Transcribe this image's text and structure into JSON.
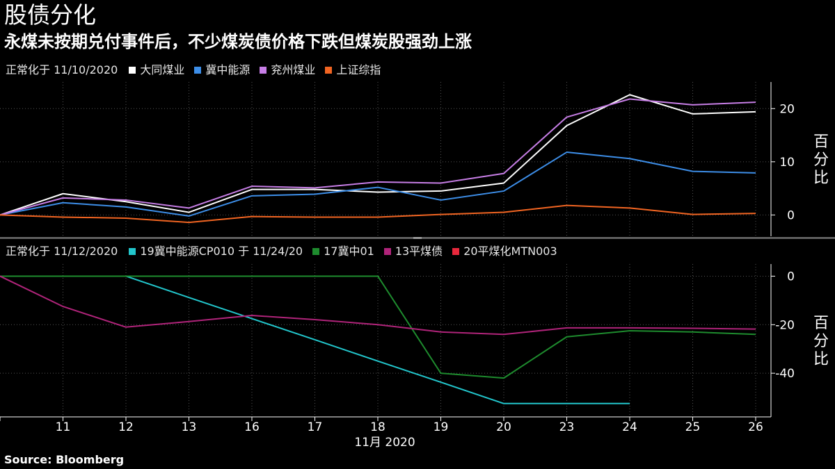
{
  "title": "股债分化",
  "subtitle": "永煤未按期兑付事件后，不少煤炭债价格下跌但煤炭股强劲上涨",
  "source": "Source: Bloomberg",
  "x_axis": {
    "ticks": [
      "11",
      "12",
      "13",
      "16",
      "17",
      "18",
      "19",
      "20",
      "23",
      "24",
      "25",
      "26"
    ],
    "label": "11月 2020"
  },
  "chart_data": [
    {
      "type": "line",
      "legend_title": "正常化于 11/10/2020",
      "unit_label": "百分比",
      "x": [
        "10",
        "11",
        "12",
        "13",
        "16",
        "17",
        "18",
        "19",
        "20",
        "23",
        "24",
        "25",
        "26"
      ],
      "ylim": [
        -4,
        25
      ],
      "yticks": [
        0,
        10,
        20
      ],
      "grid": true,
      "series": [
        {
          "name": "大同煤业",
          "color": "#ffffff",
          "values": [
            0,
            4.0,
            2.5,
            0.5,
            4.8,
            4.8,
            4.3,
            4.5,
            6.0,
            16.8,
            22.6,
            19.0,
            19.4
          ]
        },
        {
          "name": "冀中能源",
          "color": "#3d8ee8",
          "values": [
            0,
            2.3,
            1.5,
            -0.2,
            3.6,
            3.9,
            5.2,
            2.8,
            4.5,
            11.8,
            10.6,
            8.2,
            7.9
          ]
        },
        {
          "name": "兖州煤业",
          "color": "#c77ee6",
          "values": [
            0,
            3.2,
            2.8,
            1.3,
            5.4,
            5.1,
            6.2,
            6.0,
            7.8,
            18.4,
            21.8,
            20.7,
            21.2
          ]
        },
        {
          "name": "上证综指",
          "color": "#f26522",
          "values": [
            0,
            -0.4,
            -0.6,
            -1.4,
            -0.3,
            -0.4,
            -0.4,
            0.1,
            0.5,
            1.8,
            1.3,
            0.1,
            0.3
          ]
        }
      ]
    },
    {
      "type": "line",
      "legend_title": "正常化于 11/12/2020",
      "unit_label": "百分比",
      "x": [
        "10",
        "11",
        "12",
        "13",
        "16",
        "17",
        "18",
        "19",
        "20",
        "23",
        "24",
        "25",
        "26"
      ],
      "ylim": [
        -58,
        5
      ],
      "yticks": [
        0,
        -20,
        -40
      ],
      "grid": true,
      "series": [
        {
          "name": "19冀中能源CP010 于 11/24/20",
          "color": "#22c6cc",
          "values": [
            null,
            null,
            0,
            -8.8,
            -17.5,
            -26.2,
            -35,
            -43.7,
            -52.5,
            -52.5,
            -52.5,
            null,
            null
          ]
        },
        {
          "name": "17冀中01",
          "color": "#1e8c2e",
          "values": [
            0,
            0,
            0,
            0,
            0,
            0,
            0,
            -40,
            -42,
            -25,
            -22.5,
            -23,
            -24
          ]
        },
        {
          "name": "13平煤债",
          "color": "#b0247a",
          "values": [
            0,
            -12.5,
            -21,
            -18.7,
            -16.2,
            -17.9,
            -20,
            -23,
            -24,
            -21.3,
            -21.3,
            -21.5,
            -21.8
          ]
        },
        {
          "name": "20平煤化MTN003",
          "color": "#e8283c",
          "values": [
            null,
            null,
            null,
            null,
            null,
            null,
            null,
            null,
            null,
            null,
            null,
            null,
            null
          ]
        }
      ]
    }
  ]
}
